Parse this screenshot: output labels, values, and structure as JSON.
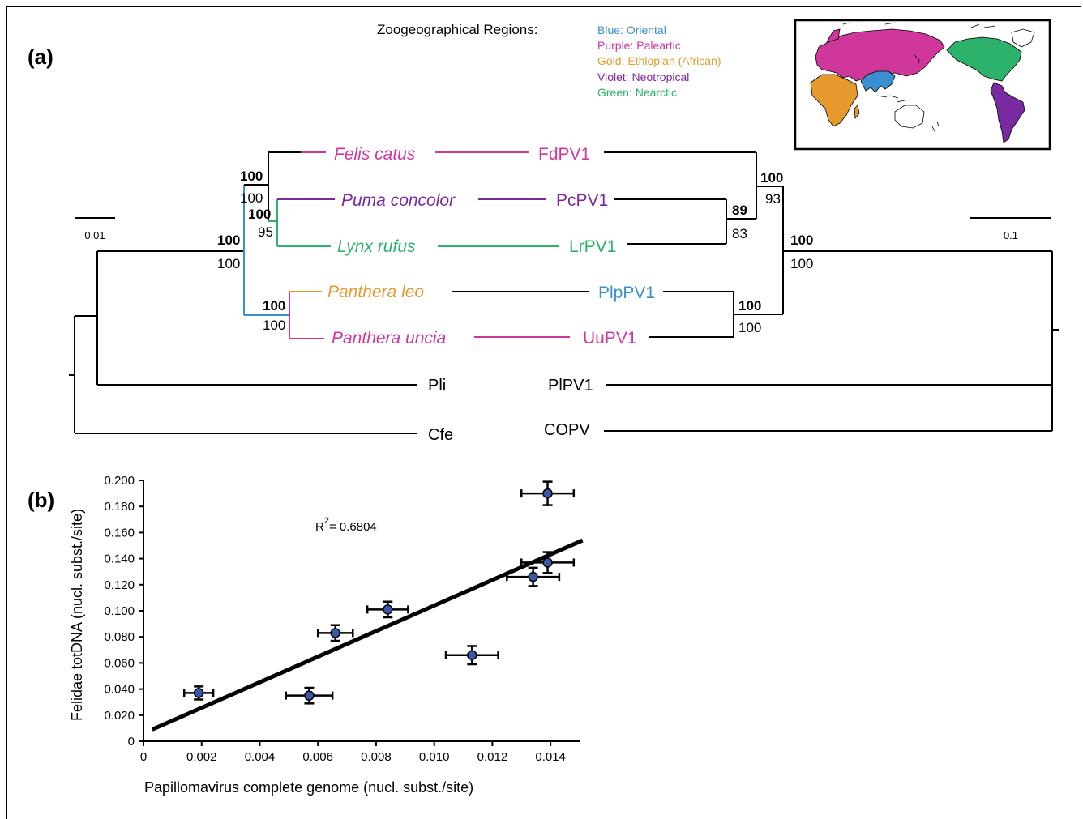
{
  "panel_a": {
    "label": "(a)",
    "legend": {
      "title": "Zoogeographical Regions:",
      "entries": [
        {
          "text": "Blue: Oriental",
          "color": "#3a8fd0"
        },
        {
          "text": "Purple: Paleartic",
          "color": "#d0379a"
        },
        {
          "text": "Gold: Ethiopian (African)",
          "color": "#e69a2e"
        },
        {
          "text": "Violet: Neotropical",
          "color": "#7a2aa0"
        },
        {
          "text": "Green: Nearctic",
          "color": "#2db26b"
        }
      ]
    },
    "map": {
      "regions": [
        "Oriental",
        "Paleartic",
        "Ethiopian (African)",
        "Neotropical",
        "Nearctic"
      ]
    },
    "host_tree": {
      "scale_bar": "0.01",
      "taxa": [
        {
          "name": "Felis catus",
          "color": "#d0379a"
        },
        {
          "name": "Puma concolor",
          "color": "#7a2aa0"
        },
        {
          "name": "Lynx rufus",
          "color": "#2db26b"
        },
        {
          "name": "Panthera leo",
          "color": "#e69a2e"
        },
        {
          "name": "Panthera uncia",
          "color": "#d0379a"
        },
        {
          "name": "Pli",
          "color": "#000000"
        },
        {
          "name": "Cfe",
          "color": "#000000"
        }
      ],
      "support": [
        {
          "top": "100",
          "bottom": "100"
        },
        {
          "top": "100",
          "bottom": "95"
        },
        {
          "top": "100",
          "bottom": "100"
        },
        {
          "top": "100",
          "bottom": "100"
        }
      ]
    },
    "virus_tree": {
      "scale_bar": "0.1",
      "taxa": [
        {
          "name": "FdPV1",
          "color": "#d0379a"
        },
        {
          "name": "PcPV1",
          "color": "#7a2aa0"
        },
        {
          "name": "LrPV1",
          "color": "#2db26b"
        },
        {
          "name": "PlpPV1",
          "color": "#3a8fd0"
        },
        {
          "name": "UuPV1",
          "color": "#d0379a"
        },
        {
          "name": "PlPV1",
          "color": "#000000"
        },
        {
          "name": "COPV",
          "color": "#000000"
        }
      ],
      "support": [
        {
          "top": "100",
          "bottom": "93"
        },
        {
          "top": "89",
          "bottom": "83"
        },
        {
          "top": "100",
          "bottom": "100"
        },
        {
          "top": "100",
          "bottom": "100"
        }
      ]
    }
  },
  "panel_b": {
    "label": "(b)",
    "r2_base": "R",
    "r2_sup": "2",
    "r2_value": "= 0.6804"
  },
  "chart_data": {
    "type": "scatter",
    "title": "",
    "xlabel": "Papillomavirus complete genome (nucl. subst./site)",
    "ylabel": "Felidae totDNA (nucl. subst./site)",
    "xlim": [
      0,
      0.015
    ],
    "ylim": [
      0,
      0.2
    ],
    "x_ticks": [
      "0",
      "0.002",
      "0.004",
      "0.006",
      "0.008",
      "0.010",
      "0.012",
      "0.014"
    ],
    "y_ticks": [
      "0",
      "0.020",
      "0.040",
      "0.060",
      "0.080",
      "0.100",
      "0.120",
      "0.140",
      "0.160",
      "0.180",
      "0.200"
    ],
    "grid": false,
    "points": [
      {
        "x": 0.0019,
        "y": 0.037,
        "xerr": 0.0005,
        "yerr": 0.005
      },
      {
        "x": 0.0057,
        "y": 0.035,
        "xerr": 0.0008,
        "yerr": 0.006
      },
      {
        "x": 0.0066,
        "y": 0.083,
        "xerr": 0.0006,
        "yerr": 0.006
      },
      {
        "x": 0.0084,
        "y": 0.101,
        "xerr": 0.0007,
        "yerr": 0.006
      },
      {
        "x": 0.0113,
        "y": 0.066,
        "xerr": 0.0009,
        "yerr": 0.007
      },
      {
        "x": 0.0134,
        "y": 0.126,
        "xerr": 0.0009,
        "yerr": 0.007
      },
      {
        "x": 0.0139,
        "y": 0.137,
        "xerr": 0.0009,
        "yerr": 0.008
      },
      {
        "x": 0.0139,
        "y": 0.19,
        "xerr": 0.0009,
        "yerr": 0.009
      }
    ],
    "regression": {
      "x": [
        0.0003,
        0.0151
      ],
      "y": [
        0.009,
        0.154
      ]
    },
    "annotation": "R2 = 0.6804"
  }
}
